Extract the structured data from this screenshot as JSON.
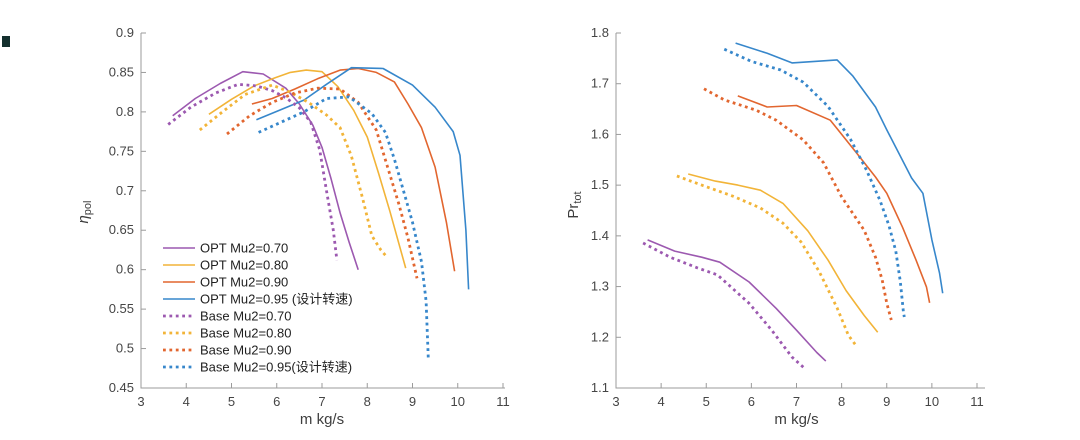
{
  "figure": {
    "background": "#ffffff",
    "artifact_color": "#14302e"
  },
  "chart_data": [
    {
      "id": "eta-pol-vs-massflow",
      "type": "line",
      "title": "",
      "xlabel": "m kg/s",
      "ylabel": {
        "main": "η",
        "sub": "pol",
        "italic_main": true
      },
      "xlim": [
        3,
        11
      ],
      "ylim": [
        0.45,
        0.9
      ],
      "xticks": [
        3,
        4,
        5,
        6,
        7,
        8,
        9,
        10,
        11
      ],
      "yticks": [
        0.45,
        0.5,
        0.55,
        0.6,
        0.65,
        0.7,
        0.75,
        0.8,
        0.85,
        0.9
      ],
      "grid": false,
      "legend": {
        "visible": true,
        "position": "lower-left",
        "box": false
      },
      "series": [
        {
          "name": "OPT Mu2=0.70",
          "style": "solid",
          "color": "#9C59B0",
          "points": [
            [
              3.7,
              0.795
            ],
            [
              4.2,
              0.817
            ],
            [
              4.75,
              0.836
            ],
            [
              5.25,
              0.851
            ],
            [
              5.7,
              0.848
            ],
            [
              6.2,
              0.83
            ],
            [
              6.5,
              0.81
            ],
            [
              6.8,
              0.783
            ],
            [
              7.0,
              0.755
            ],
            [
              7.2,
              0.715
            ],
            [
              7.4,
              0.672
            ],
            [
              7.6,
              0.635
            ],
            [
              7.8,
              0.6
            ]
          ]
        },
        {
          "name": "OPT Mu2=0.80",
          "style": "solid",
          "color": "#F2B438",
          "points": [
            [
              4.5,
              0.797
            ],
            [
              5.0,
              0.816
            ],
            [
              5.5,
              0.833
            ],
            [
              5.95,
              0.843
            ],
            [
              6.3,
              0.85
            ],
            [
              6.65,
              0.853
            ],
            [
              7.0,
              0.851
            ],
            [
              7.35,
              0.832
            ],
            [
              7.7,
              0.802
            ],
            [
              8.0,
              0.768
            ],
            [
              8.25,
              0.722
            ],
            [
              8.5,
              0.674
            ],
            [
              8.85,
              0.602
            ]
          ]
        },
        {
          "name": "OPT Mu2=0.90",
          "style": "solid",
          "color": "#E2662F",
          "points": [
            [
              5.45,
              0.81
            ],
            [
              5.9,
              0.817
            ],
            [
              6.4,
              0.829
            ],
            [
              6.9,
              0.842
            ],
            [
              7.4,
              0.853
            ],
            [
              7.8,
              0.855
            ],
            [
              8.2,
              0.85
            ],
            [
              8.6,
              0.838
            ],
            [
              8.9,
              0.81
            ],
            [
              9.2,
              0.78
            ],
            [
              9.5,
              0.73
            ],
            [
              9.75,
              0.66
            ],
            [
              9.93,
              0.598
            ]
          ]
        },
        {
          "name": "OPT Mu2=0.95 (设计转速)",
          "style": "solid",
          "color": "#3787CB",
          "points": [
            [
              5.55,
              0.79
            ],
            [
              6.1,
              0.803
            ],
            [
              6.6,
              0.815
            ],
            [
              7.1,
              0.835
            ],
            [
              7.65,
              0.856
            ],
            [
              8.35,
              0.855
            ],
            [
              9.0,
              0.834
            ],
            [
              9.5,
              0.806
            ],
            [
              9.9,
              0.775
            ],
            [
              10.05,
              0.745
            ],
            [
              10.18,
              0.65
            ],
            [
              10.24,
              0.575
            ]
          ]
        },
        {
          "name": "Base Mu2=0.70",
          "style": "dotted",
          "color": "#9C59B0",
          "points": [
            [
              3.6,
              0.784
            ],
            [
              4.1,
              0.806
            ],
            [
              4.65,
              0.824
            ],
            [
              5.15,
              0.835
            ],
            [
              5.55,
              0.833
            ],
            [
              5.9,
              0.827
            ],
            [
              6.2,
              0.818
            ],
            [
              6.5,
              0.805
            ],
            [
              6.75,
              0.787
            ],
            [
              6.95,
              0.752
            ],
            [
              7.1,
              0.7
            ],
            [
              7.25,
              0.65
            ],
            [
              7.33,
              0.612
            ]
          ]
        },
        {
          "name": "Base Mu2=0.80",
          "style": "dotted",
          "color": "#F2B438",
          "points": [
            [
              4.3,
              0.777
            ],
            [
              4.8,
              0.8
            ],
            [
              5.3,
              0.822
            ],
            [
              5.9,
              0.834
            ],
            [
              6.3,
              0.825
            ],
            [
              6.7,
              0.812
            ],
            [
              7.1,
              0.796
            ],
            [
              7.4,
              0.78
            ],
            [
              7.65,
              0.744
            ],
            [
              7.9,
              0.69
            ],
            [
              8.1,
              0.643
            ],
            [
              8.3,
              0.625
            ],
            [
              8.45,
              0.615
            ]
          ]
        },
        {
          "name": "Base Mu2=0.90",
          "style": "dotted",
          "color": "#E2662F",
          "points": [
            [
              4.9,
              0.772
            ],
            [
              5.4,
              0.795
            ],
            [
              5.9,
              0.812
            ],
            [
              6.4,
              0.824
            ],
            [
              6.9,
              0.83
            ],
            [
              7.4,
              0.829
            ],
            [
              7.8,
              0.812
            ],
            [
              8.2,
              0.777
            ],
            [
              8.45,
              0.73
            ],
            [
              8.7,
              0.683
            ],
            [
              8.9,
              0.64
            ],
            [
              9.1,
              0.589
            ]
          ]
        },
        {
          "name": "Base Mu2=0.95(设计转速)",
          "style": "dotted",
          "color": "#3787CB",
          "points": [
            [
              5.6,
              0.774
            ],
            [
              6.1,
              0.787
            ],
            [
              6.6,
              0.8
            ],
            [
              7.1,
              0.817
            ],
            [
              7.6,
              0.819
            ],
            [
              8.1,
              0.798
            ],
            [
              8.4,
              0.774
            ],
            [
              8.6,
              0.74
            ],
            [
              8.8,
              0.7
            ],
            [
              9.0,
              0.66
            ],
            [
              9.2,
              0.61
            ],
            [
              9.3,
              0.56
            ],
            [
              9.35,
              0.487
            ]
          ]
        }
      ]
    },
    {
      "id": "pr-tot-vs-massflow",
      "type": "line",
      "title": "",
      "xlabel": "m kg/s",
      "ylabel": {
        "main": "Pr",
        "sub": "tot",
        "italic_main": false
      },
      "xlim": [
        3,
        11
      ],
      "ylim": [
        1.1,
        1.8
      ],
      "xticks": [
        3,
        4,
        5,
        6,
        7,
        8,
        9,
        10,
        11
      ],
      "yticks": [
        1.1,
        1.2,
        1.3,
        1.4,
        1.5,
        1.6,
        1.7,
        1.8
      ],
      "grid": false,
      "legend": {
        "visible": false
      },
      "series": [
        {
          "name": "OPT Mu2=0.70",
          "style": "solid",
          "color": "#9C59B0",
          "points": [
            [
              3.7,
              1.392
            ],
            [
              4.3,
              1.37
            ],
            [
              4.9,
              1.358
            ],
            [
              5.3,
              1.348
            ],
            [
              5.95,
              1.309
            ],
            [
              6.55,
              1.257
            ],
            [
              7.0,
              1.214
            ],
            [
              7.45,
              1.17
            ],
            [
              7.65,
              1.153
            ]
          ]
        },
        {
          "name": "OPT Mu2=0.80",
          "style": "solid",
          "color": "#F2B438",
          "points": [
            [
              4.6,
              1.522
            ],
            [
              5.2,
              1.508
            ],
            [
              5.7,
              1.5
            ],
            [
              6.2,
              1.49
            ],
            [
              6.7,
              1.464
            ],
            [
              7.25,
              1.41
            ],
            [
              7.7,
              1.352
            ],
            [
              8.1,
              1.292
            ],
            [
              8.5,
              1.243
            ],
            [
              8.8,
              1.21
            ]
          ]
        },
        {
          "name": "OPT Mu2=0.90",
          "style": "solid",
          "color": "#E2662F",
          "points": [
            [
              5.7,
              1.676
            ],
            [
              6.35,
              1.654
            ],
            [
              7.0,
              1.657
            ],
            [
              7.75,
              1.628
            ],
            [
              8.3,
              1.567
            ],
            [
              8.75,
              1.516
            ],
            [
              9.0,
              1.484
            ],
            [
              9.35,
              1.417
            ],
            [
              9.65,
              1.352
            ],
            [
              9.88,
              1.299
            ],
            [
              9.95,
              1.268
            ]
          ]
        },
        {
          "name": "OPT Mu2=0.95 (设计转速)",
          "style": "solid",
          "color": "#3787CB",
          "points": [
            [
              5.65,
              1.78
            ],
            [
              6.35,
              1.76
            ],
            [
              6.9,
              1.741
            ],
            [
              7.9,
              1.747
            ],
            [
              8.25,
              1.715
            ],
            [
              8.75,
              1.654
            ],
            [
              9.0,
              1.609
            ],
            [
              9.55,
              1.514
            ],
            [
              9.8,
              1.484
            ],
            [
              10.0,
              1.392
            ],
            [
              10.17,
              1.327
            ],
            [
              10.24,
              1.287
            ]
          ]
        },
        {
          "name": "Base Mu2=0.70",
          "style": "dotted",
          "color": "#9C59B0",
          "points": [
            [
              3.6,
              1.386
            ],
            [
              4.2,
              1.358
            ],
            [
              4.8,
              1.337
            ],
            [
              5.25,
              1.323
            ],
            [
              5.95,
              1.267
            ],
            [
              6.45,
              1.214
            ],
            [
              6.9,
              1.161
            ],
            [
              7.2,
              1.137
            ]
          ]
        },
        {
          "name": "Base Mu2=0.80",
          "style": "dotted",
          "color": "#F2B438",
          "points": [
            [
              4.35,
              1.518
            ],
            [
              4.9,
              1.5
            ],
            [
              5.6,
              1.478
            ],
            [
              6.2,
              1.455
            ],
            [
              6.7,
              1.425
            ],
            [
              7.1,
              1.388
            ],
            [
              7.5,
              1.33
            ],
            [
              7.9,
              1.258
            ],
            [
              8.15,
              1.204
            ],
            [
              8.3,
              1.186
            ]
          ]
        },
        {
          "name": "Base Mu2=0.90",
          "style": "dotted",
          "color": "#E2662F",
          "points": [
            [
              4.95,
              1.69
            ],
            [
              5.4,
              1.668
            ],
            [
              6.1,
              1.648
            ],
            [
              6.55,
              1.628
            ],
            [
              7.15,
              1.589
            ],
            [
              7.6,
              1.544
            ],
            [
              8.0,
              1.477
            ],
            [
              8.5,
              1.411
            ],
            [
              8.75,
              1.358
            ],
            [
              8.9,
              1.313
            ],
            [
              9.0,
              1.267
            ],
            [
              9.1,
              1.234
            ]
          ]
        },
        {
          "name": "Base Mu2=0.95(设计转速)",
          "style": "dotted",
          "color": "#3787CB",
          "points": [
            [
              5.4,
              1.768
            ],
            [
              6.0,
              1.744
            ],
            [
              6.65,
              1.727
            ],
            [
              7.15,
              1.703
            ],
            [
              7.7,
              1.655
            ],
            [
              8.2,
              1.59
            ],
            [
              8.55,
              1.53
            ],
            [
              8.85,
              1.47
            ],
            [
              9.05,
              1.42
            ],
            [
              9.2,
              1.37
            ],
            [
              9.3,
              1.31
            ],
            [
              9.37,
              1.25
            ],
            [
              9.39,
              1.24
            ]
          ]
        }
      ]
    }
  ]
}
